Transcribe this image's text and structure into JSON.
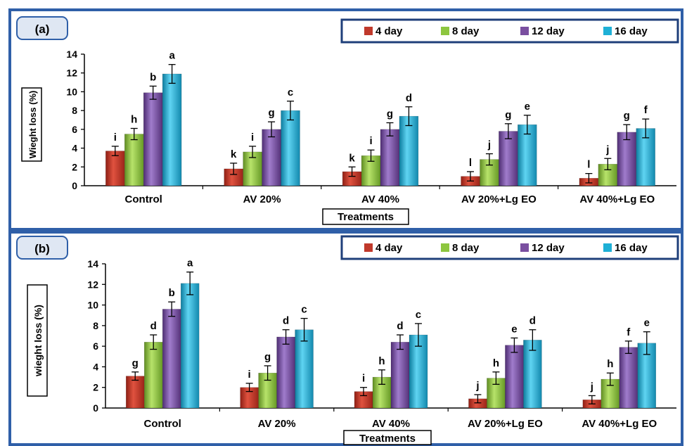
{
  "colors": {
    "series": [
      "#c0392b",
      "#8dc63f",
      "#7a4fa0",
      "#1eb0d6"
    ],
    "frame": "#2f5fa8",
    "axis": "#000000"
  },
  "chart_data": [
    {
      "type": "bar",
      "panel_label": "(a)",
      "categories": [
        "Control",
        "AV 20%",
        "AV 40%",
        "AV 20%+Lg EO",
        "AV 40%+Lg EO"
      ],
      "xlabel": "Treatments",
      "ylabel": "Wieght loss (%)",
      "ylim": [
        0,
        14
      ],
      "yticks": [
        0,
        2,
        4,
        6,
        8,
        10,
        12,
        14
      ],
      "legend_position": "top-right",
      "series": [
        {
          "name": "4 day",
          "values": [
            3.7,
            1.8,
            1.5,
            1.0,
            0.8
          ],
          "errors": [
            0.5,
            0.6,
            0.5,
            0.5,
            0.5
          ],
          "letters": [
            "i",
            "k",
            "k",
            "l",
            "l"
          ]
        },
        {
          "name": "8 day",
          "values": [
            5.5,
            3.6,
            3.2,
            2.8,
            2.3
          ],
          "errors": [
            0.6,
            0.6,
            0.6,
            0.6,
            0.6
          ],
          "letters": [
            "h",
            "i",
            "i",
            "j",
            "j"
          ]
        },
        {
          "name": "12 day",
          "values": [
            9.9,
            6.0,
            6.0,
            5.8,
            5.7
          ],
          "errors": [
            0.7,
            0.8,
            0.7,
            0.8,
            0.8
          ],
          "letters": [
            "b",
            "g",
            "g",
            "g",
            "g"
          ]
        },
        {
          "name": "16 day",
          "values": [
            11.9,
            8.0,
            7.4,
            6.5,
            6.1
          ],
          "errors": [
            1.0,
            1.0,
            1.0,
            1.0,
            1.0
          ],
          "letters": [
            "a",
            "c",
            "d",
            "e",
            "f"
          ]
        }
      ]
    },
    {
      "type": "bar",
      "panel_label": "(b)",
      "categories": [
        "Control",
        "AV 20%",
        "AV 40%",
        "AV 20%+Lg EO",
        "AV 40%+Lg EO"
      ],
      "xlabel": "Treatments",
      "ylabel": "wieght loss (%)",
      "ylim": [
        0,
        14
      ],
      "yticks": [
        0,
        2,
        4,
        6,
        8,
        10,
        12,
        14
      ],
      "legend_position": "top-right",
      "series": [
        {
          "name": "4 day",
          "values": [
            3.1,
            2.0,
            1.6,
            0.9,
            0.8
          ],
          "errors": [
            0.4,
            0.4,
            0.4,
            0.4,
            0.4
          ],
          "letters": [
            "g",
            "i",
            "i",
            "j",
            "j"
          ]
        },
        {
          "name": "8 day",
          "values": [
            6.4,
            3.4,
            3.0,
            2.9,
            2.8
          ],
          "errors": [
            0.7,
            0.7,
            0.7,
            0.6,
            0.6
          ],
          "letters": [
            "d",
            "g",
            "h",
            "h",
            "h"
          ]
        },
        {
          "name": "12 day",
          "values": [
            9.6,
            6.9,
            6.4,
            6.1,
            5.9
          ],
          "errors": [
            0.7,
            0.7,
            0.7,
            0.7,
            0.6
          ],
          "letters": [
            "b",
            "d",
            "d",
            "e",
            "f"
          ]
        },
        {
          "name": "16 day",
          "values": [
            12.1,
            7.6,
            7.1,
            6.6,
            6.3
          ],
          "errors": [
            1.1,
            1.1,
            1.1,
            1.0,
            1.1
          ],
          "letters": [
            "a",
            "c",
            "c",
            "d",
            "e"
          ]
        }
      ]
    }
  ]
}
